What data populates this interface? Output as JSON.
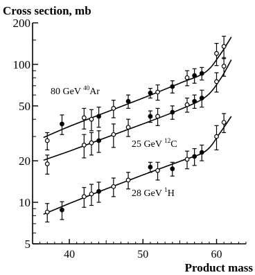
{
  "chart_data": {
    "type": "scatter",
    "ylabel": "Cross section, mb",
    "xlabel": "Product mass",
    "xlim": [
      35,
      64
    ],
    "ylim": [
      5,
      200
    ],
    "yscale": "log",
    "x_ticks": [
      40,
      50,
      60
    ],
    "x_tick_labels": [
      "40",
      "50",
      "60"
    ],
    "y_ticks": [
      5,
      10,
      20,
      50,
      100,
      200
    ],
    "y_tick_labels": [
      "5",
      "10",
      "20",
      "50",
      "100",
      "200"
    ],
    "grid": false,
    "legend": "none",
    "series": [
      {
        "label_text": "80 GeV ",
        "label_sup": "40",
        "label_rest": "Ar",
        "points": [
          {
            "x": 37,
            "y": 28,
            "err": 4,
            "filled": false
          },
          {
            "x": 39,
            "y": 37,
            "err": 6,
            "filled": true
          },
          {
            "x": 42,
            "y": 41,
            "err": 7,
            "filled": false
          },
          {
            "x": 43,
            "y": 40,
            "err": 7,
            "filled": false
          },
          {
            "x": 44,
            "y": 42,
            "err": 7,
            "filled": true
          },
          {
            "x": 46,
            "y": 48,
            "err": 7,
            "filled": false
          },
          {
            "x": 48,
            "y": 54,
            "err": 6,
            "filled": true
          },
          {
            "x": 51,
            "y": 62,
            "err": 5,
            "filled": true
          },
          {
            "x": 52,
            "y": 63,
            "err": 8,
            "filled": false
          },
          {
            "x": 54,
            "y": 69,
            "err": 7,
            "filled": true
          },
          {
            "x": 56,
            "y": 80,
            "err": 10,
            "filled": false
          },
          {
            "x": 57,
            "y": 83,
            "err": 10,
            "filled": true
          },
          {
            "x": 58,
            "y": 86,
            "err": 9,
            "filled": true
          },
          {
            "x": 60,
            "y": 120,
            "err": 22,
            "filled": false
          },
          {
            "x": 61,
            "y": 135,
            "err": 25,
            "filled": false
          }
        ],
        "curve": [
          [
            36.5,
            29.5
          ],
          [
            40,
            35.5
          ],
          [
            45,
            45
          ],
          [
            50,
            57
          ],
          [
            55,
            73
          ],
          [
            58.5,
            88
          ],
          [
            60.5,
            118
          ],
          [
            62,
            158
          ]
        ]
      },
      {
        "label_text": "25 GeV ",
        "label_sup": "12",
        "label_rest": "C",
        "points": [
          {
            "x": 37,
            "y": 19,
            "err": 3,
            "filled": false
          },
          {
            "x": 42,
            "y": 26,
            "err": 5,
            "filled": false
          },
          {
            "x": 43,
            "y": 27,
            "err": 5,
            "filled": false
          },
          {
            "x": 44,
            "y": 28,
            "err": 5,
            "filled": true
          },
          {
            "x": 46,
            "y": 31,
            "err": 6,
            "filled": false
          },
          {
            "x": 48,
            "y": 35,
            "err": 5,
            "filled": false
          },
          {
            "x": 51,
            "y": 42,
            "err": 4,
            "filled": true
          },
          {
            "x": 52,
            "y": 42,
            "err": 6,
            "filled": false
          },
          {
            "x": 54,
            "y": 45,
            "err": 5,
            "filled": true
          },
          {
            "x": 56,
            "y": 51,
            "err": 6,
            "filled": false
          },
          {
            "x": 57,
            "y": 54,
            "err": 6,
            "filled": true
          },
          {
            "x": 58,
            "y": 57,
            "err": 8,
            "filled": true
          },
          {
            "x": 60,
            "y": 75,
            "err": 12,
            "filled": false
          },
          {
            "x": 61,
            "y": 97,
            "err": 15,
            "filled": false
          }
        ],
        "curve": [
          [
            36.5,
            20.2
          ],
          [
            40,
            23.5
          ],
          [
            45,
            29.5
          ],
          [
            50,
            37
          ],
          [
            55,
            47
          ],
          [
            58.5,
            58
          ],
          [
            60.5,
            78
          ],
          [
            62,
            108
          ]
        ]
      },
      {
        "label_text": "28 GeV ",
        "label_sup": "1",
        "label_rest": "H",
        "points": [
          {
            "x": 37,
            "y": 8.5,
            "err": 1.3,
            "filled": false
          },
          {
            "x": 39,
            "y": 8.8,
            "err": 1.3,
            "filled": true
          },
          {
            "x": 42,
            "y": 11,
            "err": 1.8,
            "filled": false
          },
          {
            "x": 43,
            "y": 11.5,
            "err": 2,
            "filled": false
          },
          {
            "x": 44,
            "y": 12,
            "err": 2,
            "filled": true
          },
          {
            "x": 46,
            "y": 13,
            "err": 2,
            "filled": false
          },
          {
            "x": 48,
            "y": 14.5,
            "err": 2,
            "filled": false
          },
          {
            "x": 51,
            "y": 18,
            "err": 1.5,
            "filled": true
          },
          {
            "x": 52,
            "y": 17,
            "err": 2.5,
            "filled": false
          },
          {
            "x": 54,
            "y": 17.5,
            "err": 2,
            "filled": true
          },
          {
            "x": 56,
            "y": 20.5,
            "err": 3,
            "filled": false
          },
          {
            "x": 57,
            "y": 21.5,
            "err": 3,
            "filled": true
          },
          {
            "x": 58,
            "y": 23,
            "err": 3,
            "filled": true
          },
          {
            "x": 60,
            "y": 30,
            "err": 6,
            "filled": false
          },
          {
            "x": 61,
            "y": 38,
            "err": 6,
            "filled": false
          }
        ],
        "curve": [
          [
            36.5,
            8.2
          ],
          [
            40,
            9.8
          ],
          [
            45,
            12.5
          ],
          [
            50,
            15.8
          ],
          [
            55,
            19.8
          ],
          [
            58.5,
            23.5
          ],
          [
            60.5,
            32
          ],
          [
            62,
            42
          ]
        ]
      }
    ]
  }
}
